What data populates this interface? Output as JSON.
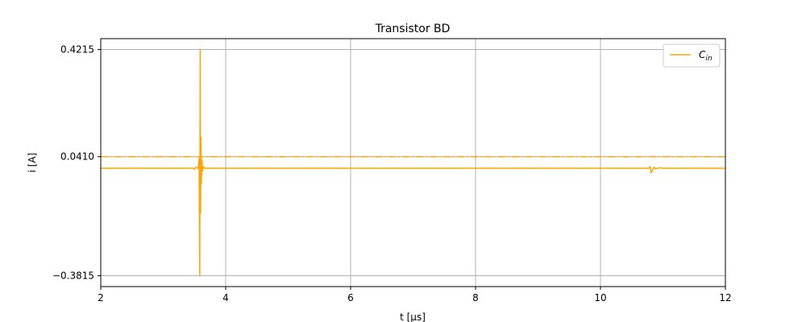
{
  "chart_data": {
    "type": "line",
    "title": "Transistor BD",
    "xlabel": "t [μs]",
    "ylabel": "i [A]",
    "xlim": [
      2,
      12
    ],
    "ylim": [
      -0.42,
      0.46
    ],
    "x_ticks": [
      2,
      4,
      6,
      8,
      10,
      12
    ],
    "y_ticks": [
      -0.3815,
      0.041,
      0.4215
    ],
    "y_tick_labels": [
      "−0.3815",
      "0.0410",
      "0.4215"
    ],
    "grid": true,
    "legend": {
      "placement": "top-right",
      "entries": [
        "C_in"
      ]
    },
    "colors": {
      "series": "#ffa500",
      "grid": "#b0b0b0",
      "axis": "#000000"
    },
    "series": [
      {
        "name": "C_in",
        "style": "solid",
        "points": [
          [
            2.0,
            0.0
          ],
          [
            3.48,
            0.0
          ],
          [
            3.5,
            -0.004
          ],
          [
            3.52,
            0.004
          ],
          [
            3.54,
            0.0
          ],
          [
            3.56,
            0.0
          ],
          [
            3.575,
            0.035
          ],
          [
            3.585,
            -0.38
          ],
          [
            3.592,
            0.4215
          ],
          [
            3.598,
            -0.16
          ],
          [
            3.604,
            0.11
          ],
          [
            3.61,
            -0.055
          ],
          [
            3.62,
            0.03
          ],
          [
            3.63,
            -0.01
          ],
          [
            3.64,
            0.006
          ],
          [
            3.66,
            0.0
          ],
          [
            10.78,
            0.0
          ],
          [
            10.79,
            0.006
          ],
          [
            10.8,
            0.004
          ],
          [
            10.81,
            -0.016
          ],
          [
            10.83,
            -0.008
          ],
          [
            10.86,
            0.004
          ],
          [
            10.88,
            -0.002
          ],
          [
            10.92,
            0.0
          ],
          [
            10.96,
            0.002
          ],
          [
            10.99,
            0.0
          ],
          [
            12.0,
            0.0
          ]
        ]
      },
      {
        "name": "",
        "style": "dash-dot",
        "points": [
          [
            2.0,
            0.041
          ],
          [
            12.0,
            0.041
          ]
        ]
      }
    ]
  }
}
